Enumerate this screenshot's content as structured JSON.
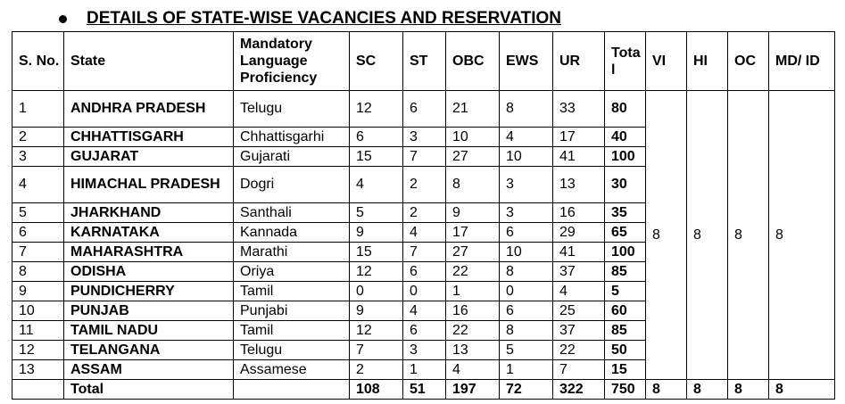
{
  "heading": "DETAILS OF STATE-WISE VACANCIES AND RESERVATION",
  "columns": [
    "S. No.",
    "State",
    "Mandatory Language Proficiency",
    "SC",
    "ST",
    "OBC",
    "EWS",
    "UR",
    "Total",
    "VI",
    "HI",
    "OC",
    "MD/ ID"
  ],
  "rows": [
    {
      "sno": "1",
      "state": "ANDHRA PRADESH",
      "lang": "Telugu",
      "sc": "12",
      "st": "6",
      "obc": "21",
      "ews": "8",
      "ur": "33",
      "total": "80"
    },
    {
      "sno": "2",
      "state": "CHHATTISGARH",
      "lang": "Chhattisgarhi",
      "sc": "6",
      "st": "3",
      "obc": "10",
      "ews": "4",
      "ur": "17",
      "total": "40"
    },
    {
      "sno": "3",
      "state": "GUJARAT",
      "lang": "Gujarati",
      "sc": "15",
      "st": "7",
      "obc": "27",
      "ews": "10",
      "ur": "41",
      "total": "100"
    },
    {
      "sno": "4",
      "state": "HIMACHAL PRADESH",
      "lang": "Dogri",
      "sc": "4",
      "st": "2",
      "obc": "8",
      "ews": "3",
      "ur": "13",
      "total": "30"
    },
    {
      "sno": "5",
      "state": "JHARKHAND",
      "lang": "Santhali",
      "sc": "5",
      "st": "2",
      "obc": "9",
      "ews": "3",
      "ur": "16",
      "total": "35"
    },
    {
      "sno": "6",
      "state": "KARNATAKA",
      "lang": "Kannada",
      "sc": "9",
      "st": "4",
      "obc": "17",
      "ews": "6",
      "ur": "29",
      "total": "65"
    },
    {
      "sno": "7",
      "state": "MAHARASHTRA",
      "lang": "Marathi",
      "sc": "15",
      "st": "7",
      "obc": "27",
      "ews": "10",
      "ur": "41",
      "total": "100"
    },
    {
      "sno": "8",
      "state": "ODISHA",
      "lang": "Oriya",
      "sc": "12",
      "st": "6",
      "obc": "22",
      "ews": "8",
      "ur": "37",
      "total": "85"
    },
    {
      "sno": "9",
      "state": "PUNDICHERRY",
      "lang": "Tamil",
      "sc": "0",
      "st": "0",
      "obc": "1",
      "ews": "0",
      "ur": "4",
      "total": "5"
    },
    {
      "sno": "10",
      "state": "PUNJAB",
      "lang": "Punjabi",
      "sc": "9",
      "st": "4",
      "obc": "16",
      "ews": "6",
      "ur": "25",
      "total": "60"
    },
    {
      "sno": "11",
      "state": "TAMIL NADU",
      "lang": "Tamil",
      "sc": "12",
      "st": "6",
      "obc": "22",
      "ews": "8",
      "ur": "37",
      "total": "85"
    },
    {
      "sno": "12",
      "state": "TELANGANA",
      "lang": "Telugu",
      "sc": "7",
      "st": "3",
      "obc": "13",
      "ews": "5",
      "ur": "22",
      "total": "50"
    },
    {
      "sno": "13",
      "state": "ASSAM",
      "lang": "Assamese",
      "sc": "2",
      "st": "1",
      "obc": "4",
      "ews": "1",
      "ur": "7",
      "total": "15"
    }
  ],
  "merged": {
    "vi": "8",
    "hi": "8",
    "oc": "8",
    "mdid": "8"
  },
  "totals": {
    "label": "Total",
    "sc": "108",
    "st": "51",
    "obc": "197",
    "ews": "72",
    "ur": "322",
    "total": "750",
    "vi": "8",
    "hi": "8",
    "oc": "8",
    "mdid": "8"
  }
}
